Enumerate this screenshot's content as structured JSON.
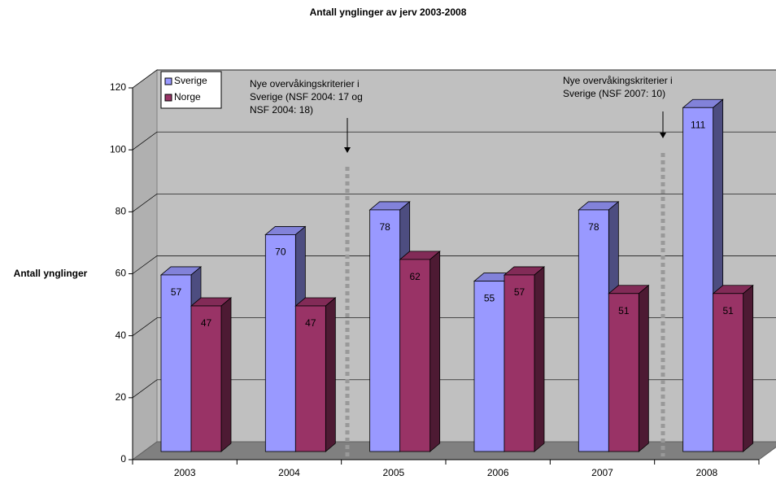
{
  "chart_data": {
    "type": "bar3d",
    "title": "Antall ynglinger av jerv 2003-2008",
    "ylabel": "Antall ynglinger",
    "categories": [
      "2003",
      "2004",
      "2005",
      "2006",
      "2007",
      "2008"
    ],
    "series": [
      {
        "name": "Sverige",
        "color": "#9999ff",
        "values": [
          57,
          70,
          78,
          55,
          78,
          111
        ]
      },
      {
        "name": "Norge",
        "color": "#993366",
        "values": [
          47,
          47,
          62,
          57,
          51,
          51
        ]
      }
    ],
    "ylim": [
      0,
      120
    ],
    "yticks": [
      0,
      20,
      40,
      60,
      80,
      100,
      120
    ],
    "grid": true,
    "legend": "upper left",
    "annotations": [
      {
        "lines": [
          "Nye overvåkingskriterier i",
          "Sverige (NSF 2004: 17 og",
          "NSF 2004: 18)"
        ]
      },
      {
        "lines": [
          "Nye overvåkingskriterier i",
          "Sverige (NSF 2007: 10)"
        ]
      }
    ]
  }
}
